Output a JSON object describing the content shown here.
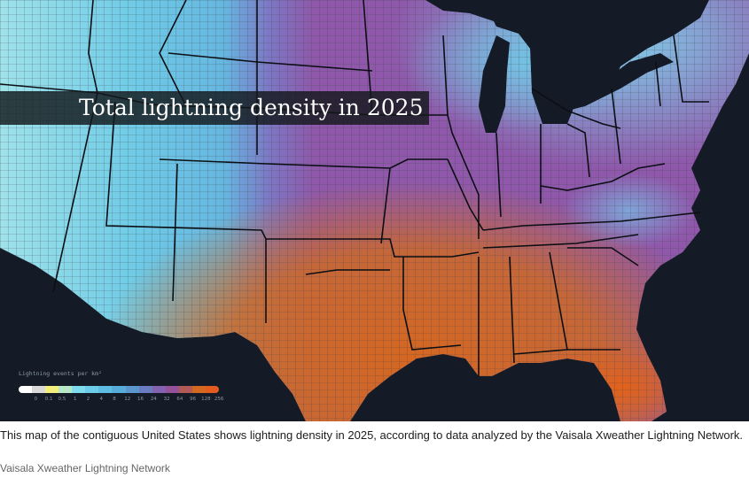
{
  "map": {
    "title": "Total lightning density in 2025",
    "background_color": "#141b26",
    "border_color": "#0b0f14",
    "county_line_color": "#3a3f4a"
  },
  "legend": {
    "title": "Lightning events per km²",
    "colors": [
      "#ffffff",
      "#d9d9d9",
      "#f4ee7a",
      "#b9e8c6",
      "#7fdcef",
      "#6ccde9",
      "#5fbde3",
      "#58acd9",
      "#5a97cd",
      "#6a7cc0",
      "#8462b0",
      "#955299",
      "#b25a55",
      "#d2691e",
      "#e45a1f"
    ],
    "ticks": [
      "0",
      "0.1",
      "0.5",
      "1",
      "2",
      "4",
      "8",
      "12",
      "16",
      "24",
      "32",
      "64",
      "96",
      "128",
      "256"
    ]
  },
  "caption": {
    "text": "This map of the contiguous United States shows lightning density in 2025, according to data analyzed by the Vaisala Xweather Lightning Network.",
    "credit": "Vaisala Xweather Lightning Network"
  }
}
